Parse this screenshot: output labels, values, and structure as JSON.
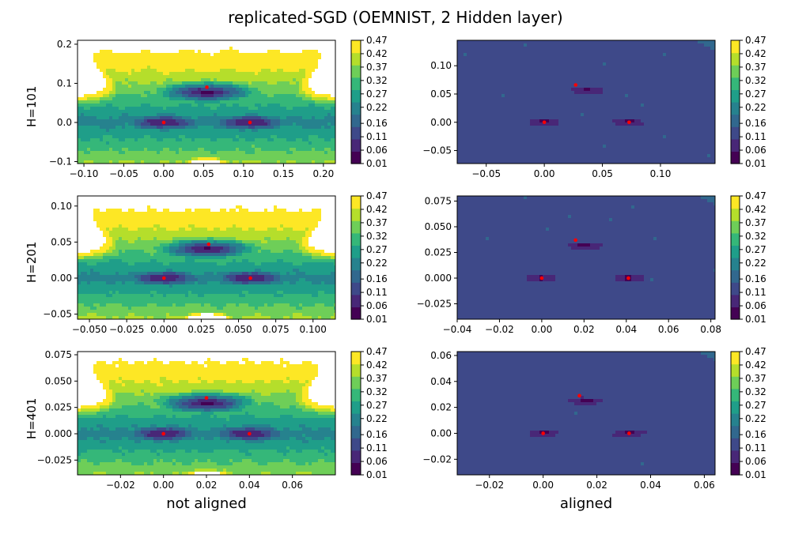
{
  "figure": {
    "title": "replicated-SGD (OEMNIST, 2 Hidden layer)",
    "column_labels": [
      "not aligned",
      "aligned"
    ],
    "row_labels": [
      "H=101",
      "H=201",
      "H=401"
    ],
    "colorbar_ticks": [
      "0.47",
      "0.42",
      "0.37",
      "0.32",
      "0.27",
      "0.22",
      "0.16",
      "0.11",
      "0.06",
      "0.01"
    ],
    "colormap": [
      "#440154",
      "#482777",
      "#3e4989",
      "#31688e",
      "#26828e",
      "#1f9e89",
      "#35b779",
      "#6ece58",
      "#b5de2b",
      "#fde725"
    ],
    "marker_color": "#ff0000"
  },
  "chart_data": [
    {
      "type": "contour",
      "row": 0,
      "col": 0,
      "ylabel": "H=101",
      "xlabel": "",
      "xlim": [
        -0.108,
        0.215
      ],
      "ylim": [
        -0.105,
        0.21
      ],
      "xticks": [
        "-0.10",
        "-0.05",
        "0.00",
        "0.05",
        "0.10",
        "0.15",
        "0.20"
      ],
      "yticks": [
        "-0.1",
        "0.0",
        "0.1",
        "0.2"
      ],
      "x": [
        0.0,
        0.108,
        0.054
      ],
      "y": [
        0.0,
        0.0,
        0.09
      ],
      "points": [
        [
          0.0,
          0.0
        ],
        [
          0.108,
          0.0
        ],
        [
          0.054,
          0.09
        ]
      ],
      "zrange": [
        0.01,
        0.47
      ]
    },
    {
      "type": "contour",
      "row": 0,
      "col": 1,
      "ylabel": "",
      "xlabel": "",
      "xlim": [
        -0.075,
        0.147
      ],
      "ylim": [
        -0.073,
        0.145
      ],
      "xticks": [
        "-0.05",
        "0.00",
        "0.05",
        "0.10"
      ],
      "yticks": [
        "-0.05",
        "0.00",
        "0.05",
        "0.10"
      ],
      "x": [
        0.0,
        0.073,
        0.027
      ],
      "y": [
        0.0,
        0.0,
        0.066
      ],
      "points": [
        [
          0.0,
          0.0
        ],
        [
          0.073,
          0.0
        ],
        [
          0.027,
          0.066
        ]
      ],
      "zrange": [
        0.01,
        0.47
      ]
    },
    {
      "type": "contour",
      "row": 1,
      "col": 0,
      "ylabel": "H=201",
      "xlabel": "",
      "xlim": [
        -0.058,
        0.115
      ],
      "ylim": [
        -0.057,
        0.114
      ],
      "xticks": [
        "-0.050",
        "-0.025",
        "0.000",
        "0.025",
        "0.050",
        "0.075",
        "0.100"
      ],
      "yticks": [
        "-0.05",
        "0.00",
        "0.05",
        "0.10"
      ],
      "x": [
        0.0,
        0.058,
        0.03
      ],
      "y": [
        0.0,
        0.0,
        0.047
      ],
      "points": [
        [
          0.0,
          0.0
        ],
        [
          0.058,
          0.0
        ],
        [
          0.03,
          0.047
        ]
      ],
      "zrange": [
        0.01,
        0.47
      ]
    },
    {
      "type": "contour",
      "row": 1,
      "col": 1,
      "ylabel": "",
      "xlabel": "",
      "xlim": [
        -0.04,
        0.082
      ],
      "ylim": [
        -0.04,
        0.08
      ],
      "xticks": [
        "-0.04",
        "-0.02",
        "0.00",
        "0.02",
        "0.04",
        "0.06",
        "0.08"
      ],
      "yticks": [
        "-0.025",
        "0.000",
        "0.025",
        "0.050",
        "0.075"
      ],
      "x": [
        0.0,
        0.041,
        0.016
      ],
      "y": [
        0.0,
        0.0,
        0.037
      ],
      "points": [
        [
          0.0,
          0.0
        ],
        [
          0.041,
          0.0
        ],
        [
          0.016,
          0.037
        ]
      ],
      "zrange": [
        0.01,
        0.47
      ]
    },
    {
      "type": "contour",
      "row": 2,
      "col": 0,
      "ylabel": "H=401",
      "xlabel": "not aligned",
      "xlim": [
        -0.04,
        0.08
      ],
      "ylim": [
        -0.039,
        0.078
      ],
      "xticks": [
        "-0.02",
        "0.00",
        "0.02",
        "0.04",
        "0.06"
      ],
      "yticks": [
        "-0.025",
        "0.000",
        "0.025",
        "0.050",
        "0.075"
      ],
      "x": [
        0.0,
        0.04,
        0.02
      ],
      "y": [
        0.0,
        0.0,
        0.034
      ],
      "points": [
        [
          0.0,
          0.0
        ],
        [
          0.04,
          0.0
        ],
        [
          0.02,
          0.034
        ]
      ],
      "zrange": [
        0.01,
        0.47
      ]
    },
    {
      "type": "contour",
      "row": 2,
      "col": 1,
      "ylabel": "",
      "xlabel": "aligned",
      "xlim": [
        -0.032,
        0.064
      ],
      "ylim": [
        -0.032,
        0.063
      ],
      "xticks": [
        "-0.02",
        "0.00",
        "0.02",
        "0.04",
        "0.06"
      ],
      "yticks": [
        "-0.02",
        "0.00",
        "0.02",
        "0.04",
        "0.06"
      ],
      "x": [
        0.0,
        0.032,
        0.0135
      ],
      "y": [
        0.0,
        0.0,
        0.029
      ],
      "points": [
        [
          0.0,
          0.0
        ],
        [
          0.032,
          0.0
        ],
        [
          0.0135,
          0.029
        ]
      ],
      "zrange": [
        0.01,
        0.47
      ]
    }
  ]
}
